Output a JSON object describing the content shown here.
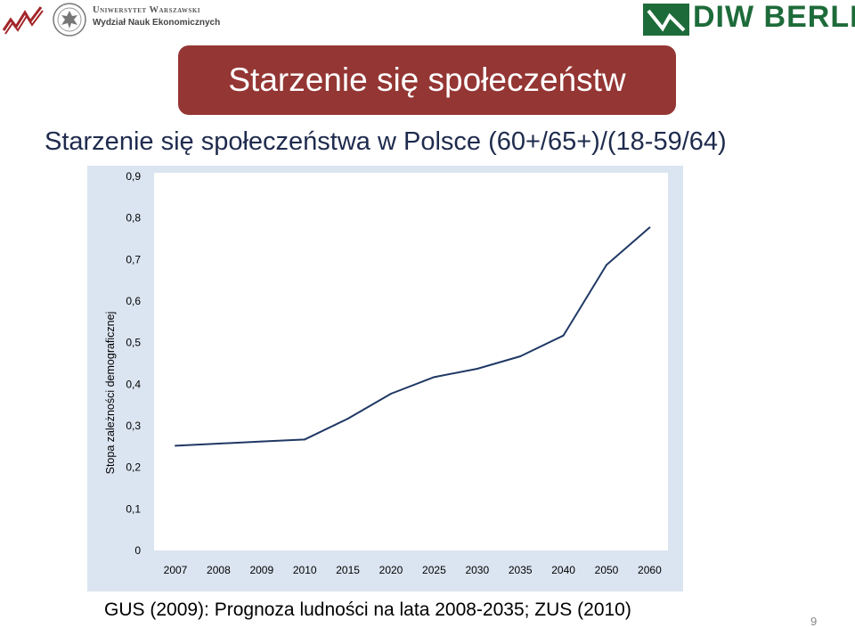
{
  "header": {
    "university_name": "Uniwersytet Warszawski",
    "department": "Wydział Nauk Ekonomicznych",
    "partner_logo_text": "DIW BERLIN",
    "brand_green": "#1e6b3a",
    "brand_red": "#a3262a"
  },
  "slide": {
    "title": "Starzenie się społeczeństw",
    "subtitle": "Starzenie się społeczeństwa w Polsce (60+/65+)/(18-59/64)",
    "source": "GUS (2009): Prognoza ludności na lata 2008-2035; ZUS (2010)",
    "page_number": "9",
    "banner_color": "#943634"
  },
  "chart_data": {
    "type": "line",
    "title": "",
    "xlabel": "",
    "ylabel": "Stopa zależności demograficznej",
    "categories": [
      "2007",
      "2008",
      "2009",
      "2010",
      "2015",
      "2020",
      "2025",
      "2030",
      "2035",
      "2040",
      "2050",
      "2060"
    ],
    "series": [
      {
        "values": [
          0.25,
          0.255,
          0.26,
          0.265,
          0.315,
          0.375,
          0.415,
          0.435,
          0.465,
          0.515,
          0.685,
          0.775
        ]
      }
    ],
    "ylim": [
      0,
      0.9
    ],
    "yticks": [
      "0",
      "0,1",
      "0,2",
      "0,3",
      "0,4",
      "0,5",
      "0,6",
      "0,7",
      "0,8",
      "0,9"
    ],
    "line_color": "#1f3864",
    "plot_background": "#ffffff",
    "chart_background": "#dbe5f1",
    "grid": false,
    "legend": "none"
  }
}
